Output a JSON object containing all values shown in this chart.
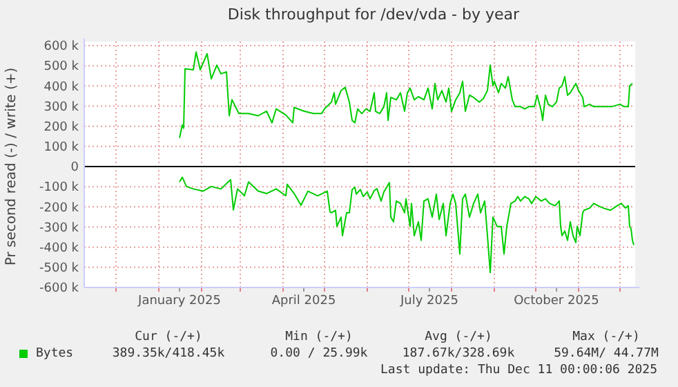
{
  "chart_data": {
    "type": "line",
    "title": "Disk throughput for /dev/vda - by year",
    "ylabel": "Pr second read (-) / write (+)",
    "xlim": [
      "2024-11-08",
      "2025-12-12"
    ],
    "xticks": [
      {
        "value": "2024-12-01",
        "label": null
      },
      {
        "value": "2025-01-01",
        "label": null
      },
      {
        "value": "2025-01-16",
        "label": "January 2025"
      },
      {
        "value": "2025-02-01",
        "label": null
      },
      {
        "value": "2025-03-01",
        "label": null
      },
      {
        "value": "2025-04-01",
        "label": null
      },
      {
        "value": "2025-04-16",
        "label": "April 2025"
      },
      {
        "value": "2025-05-01",
        "label": null
      },
      {
        "value": "2025-06-01",
        "label": null
      },
      {
        "value": "2025-07-01",
        "label": null
      },
      {
        "value": "2025-07-16",
        "label": "July 2025"
      },
      {
        "value": "2025-08-01",
        "label": null
      },
      {
        "value": "2025-09-01",
        "label": null
      },
      {
        "value": "2025-10-01",
        "label": null
      },
      {
        "value": "2025-10-16",
        "label": "October 2025"
      },
      {
        "value": "2025-11-01",
        "label": null
      },
      {
        "value": "2025-12-01",
        "label": null
      }
    ],
    "ylim": [
      -600000,
      600000
    ],
    "yticks": [
      {
        "value": -600000,
        "label": "-600 k"
      },
      {
        "value": -500000,
        "label": "-500 k"
      },
      {
        "value": -400000,
        "label": "-400 k"
      },
      {
        "value": -300000,
        "label": "-300 k"
      },
      {
        "value": -200000,
        "label": "-200 k"
      },
      {
        "value": -100000,
        "label": "-100 k"
      },
      0,
      {
        "value": 100000,
        "label": "100 k"
      },
      {
        "value": 200000,
        "label": "200 k"
      },
      {
        "value": 300000,
        "label": "300 k"
      },
      {
        "value": 400000,
        "label": "400 k"
      },
      {
        "value": 500000,
        "label": "500 k"
      },
      {
        "value": 600000,
        "label": "600 k"
      }
    ],
    "grid": true,
    "legend": "bottom",
    "marker": "none",
    "line_style": "solid",
    "ref_lines": [
      {
        "axis": "y",
        "value": 0,
        "color": "#000000"
      }
    ],
    "series": [
      {
        "name": "Bytes",
        "color": "#00cc00",
        "x": [
          "2025-01-16",
          "2025-01-18",
          "2025-01-19",
          "2025-01-20",
          "2025-01-26",
          "2025-01-28",
          "2025-01-31",
          "2025-02-05",
          "2025-02-08",
          "2025-02-12",
          "2025-02-15",
          "2025-02-19",
          "2025-02-21",
          "2025-02-23",
          "2025-02-28",
          "2025-03-07",
          "2025-03-14",
          "2025-03-20",
          "2025-03-24",
          "2025-03-27",
          "2025-04-03",
          "2025-04-08",
          "2025-04-09",
          "2025-04-16",
          "2025-04-23",
          "2025-04-29",
          "2025-05-01",
          "2025-05-06",
          "2025-05-08",
          "2025-05-09",
          "2025-05-13",
          "2025-05-16",
          "2025-05-19",
          "2025-05-21",
          "2025-05-23",
          "2025-05-25",
          "2025-05-28",
          "2025-05-31",
          "2025-06-03",
          "2025-06-06",
          "2025-06-07",
          "2025-06-10",
          "2025-06-13",
          "2025-06-15",
          "2025-06-16",
          "2025-06-18",
          "2025-06-22",
          "2025-06-25",
          "2025-06-28",
          "2025-06-30",
          "2025-07-02",
          "2025-07-05",
          "2025-07-08",
          "2025-07-12",
          "2025-07-15",
          "2025-07-18",
          "2025-07-20",
          "2025-07-22",
          "2025-07-25",
          "2025-07-28",
          "2025-07-30",
          "2025-08-01",
          "2025-08-04",
          "2025-08-07",
          "2025-08-09",
          "2025-08-11",
          "2025-08-14",
          "2025-08-17",
          "2025-08-21",
          "2025-08-24",
          "2025-08-27",
          "2025-08-29",
          "2025-08-31",
          "2025-09-01",
          "2025-09-04",
          "2025-09-06",
          "2025-09-09",
          "2025-09-11",
          "2025-09-14",
          "2025-09-16",
          "2025-09-20",
          "2025-09-23",
          "2025-09-26",
          "2025-09-28",
          "2025-09-30",
          "2025-10-02",
          "2025-10-05",
          "2025-10-06",
          "2025-10-08",
          "2025-10-10",
          "2025-10-13",
          "2025-10-16",
          "2025-10-18",
          "2025-10-20",
          "2025-10-22",
          "2025-10-24",
          "2025-10-26",
          "2025-10-30",
          "2025-11-01",
          "2025-11-04",
          "2025-11-05",
          "2025-11-09",
          "2025-11-12",
          "2025-11-19",
          "2025-11-25",
          "2025-12-01",
          "2025-12-04",
          "2025-12-07",
          "2025-12-08",
          "2025-12-10"
        ],
        "values": [
          142000,
          206000,
          190000,
          485000,
          480000,
          568000,
          480000,
          560000,
          435000,
          503000,
          460000,
          470000,
          252000,
          332000,
          263000,
          263000,
          252000,
          275000,
          217000,
          286000,
          256000,
          217000,
          293000,
          275000,
          263000,
          263000,
          286000,
          320000,
          366000,
          309000,
          377000,
          393000,
          320000,
          229000,
          217000,
          286000,
          263000,
          286000,
          274000,
          366000,
          274000,
          263000,
          297000,
          366000,
          229000,
          343000,
          331000,
          366000,
          274000,
          366000,
          389000,
          331000,
          347000,
          331000,
          389000,
          286000,
          412000,
          331000,
          377000,
          320000,
          389000,
          274000,
          331000,
          366000,
          423000,
          274000,
          354000,
          343000,
          320000,
          337000,
          377000,
          503000,
          400000,
          423000,
          366000,
          412000,
          389000,
          446000,
          331000,
          297000,
          297000,
          286000,
          297000,
          297000,
          297000,
          354000,
          274000,
          229000,
          354000,
          309000,
          297000,
          320000,
          389000,
          400000,
          446000,
          354000,
          366000,
          412000,
          377000,
          343000,
          297000,
          309000,
          297000,
          297000,
          297000,
          309000,
          297000,
          297000,
          400000,
          412000
        ]
      },
      {
        "color": "#00cc00",
        "x": [
          "2025-01-16",
          "2025-01-18",
          "2025-01-21",
          "2025-01-26",
          "2025-02-02",
          "2025-02-08",
          "2025-02-15",
          "2025-02-22",
          "2025-02-24",
          "2025-02-27",
          "2025-03-04",
          "2025-03-07",
          "2025-03-14",
          "2025-03-20",
          "2025-03-27",
          "2025-04-03",
          "2025-04-04",
          "2025-04-09",
          "2025-04-14",
          "2025-04-19",
          "2025-04-26",
          "2025-05-03",
          "2025-05-05",
          "2025-05-06",
          "2025-05-09",
          "2025-05-10",
          "2025-05-13",
          "2025-05-14",
          "2025-05-17",
          "2025-05-19",
          "2025-05-21",
          "2025-05-23",
          "2025-05-24",
          "2025-05-27",
          "2025-05-29",
          "2025-06-01",
          "2025-06-03",
          "2025-06-06",
          "2025-06-08",
          "2025-06-11",
          "2025-06-13",
          "2025-06-17",
          "2025-06-18",
          "2025-06-20",
          "2025-06-22",
          "2025-06-25",
          "2025-06-28",
          "2025-06-29",
          "2025-07-02",
          "2025-07-03",
          "2025-07-05",
          "2025-07-08",
          "2025-07-10",
          "2025-07-12",
          "2025-07-15",
          "2025-07-18",
          "2025-07-21",
          "2025-07-23",
          "2025-07-26",
          "2025-07-28",
          "2025-07-31",
          "2025-08-02",
          "2025-08-04",
          "2025-08-07",
          "2025-08-09",
          "2025-08-11",
          "2025-08-14",
          "2025-08-17",
          "2025-08-20",
          "2025-08-22",
          "2025-08-25",
          "2025-08-27",
          "2025-08-29",
          "2025-08-31",
          "2025-09-03",
          "2025-09-06",
          "2025-09-08",
          "2025-09-10",
          "2025-09-13",
          "2025-09-16",
          "2025-09-18",
          "2025-09-20",
          "2025-09-23",
          "2025-09-26",
          "2025-09-28",
          "2025-10-01",
          "2025-10-05",
          "2025-10-08",
          "2025-10-11",
          "2025-10-15",
          "2025-10-18",
          "2025-10-19",
          "2025-10-20",
          "2025-10-22",
          "2025-10-24",
          "2025-10-26",
          "2025-10-28",
          "2025-10-30",
          "2025-10-31",
          "2025-11-02",
          "2025-11-04",
          "2025-11-05",
          "2025-11-09",
          "2025-11-12",
          "2025-11-15",
          "2025-11-19",
          "2025-11-24",
          "2025-11-29",
          "2025-12-02",
          "2025-12-05",
          "2025-12-07",
          "2025-12-08",
          "2025-12-09",
          "2025-12-10",
          "2025-12-11"
        ],
        "values": [
          -76000,
          -53000,
          -99000,
          -111000,
          -122000,
          -99000,
          -111000,
          -65000,
          -215000,
          -111000,
          -145000,
          -76000,
          -122000,
          -134000,
          -111000,
          -145000,
          -88000,
          -134000,
          -192000,
          -122000,
          -145000,
          -122000,
          -226000,
          -229000,
          -217000,
          -297000,
          -251000,
          -343000,
          -229000,
          -229000,
          -114000,
          -103000,
          -137000,
          -114000,
          -149000,
          -126000,
          -160000,
          -119000,
          -110000,
          -171000,
          -126000,
          -80000,
          -251000,
          -274000,
          -171000,
          -183000,
          -229000,
          -160000,
          -297000,
          -183000,
          -343000,
          -274000,
          -366000,
          -171000,
          -160000,
          -251000,
          -137000,
          -263000,
          -183000,
          -343000,
          -183000,
          -137000,
          -183000,
          -434000,
          -160000,
          -137000,
          -251000,
          -183000,
          -137000,
          -229000,
          -171000,
          -343000,
          -526000,
          -251000,
          -297000,
          -297000,
          -434000,
          -297000,
          -183000,
          -171000,
          -149000,
          -171000,
          -149000,
          -160000,
          -183000,
          -149000,
          -171000,
          -160000,
          -183000,
          -194000,
          -171000,
          -297000,
          -343000,
          -320000,
          -366000,
          -274000,
          -343000,
          -377000,
          -297000,
          -343000,
          -229000,
          -217000,
          -206000,
          -183000,
          -194000,
          -206000,
          -217000,
          -194000,
          -183000,
          -206000,
          -194000,
          -297000,
          -309000,
          -366000,
          -389000
        ]
      }
    ],
    "annotations": [
      "Cur (-/+)",
      "Min (-/+)",
      "Avg (-/+)",
      "Max (-/+)",
      "389.35k/418.45k",
      "0.00 / 25.99k",
      "187.67k/328.69k",
      "59.64M/ 44.77M",
      "Last update: Thu Dec 11 00:00:06 2025"
    ]
  }
}
